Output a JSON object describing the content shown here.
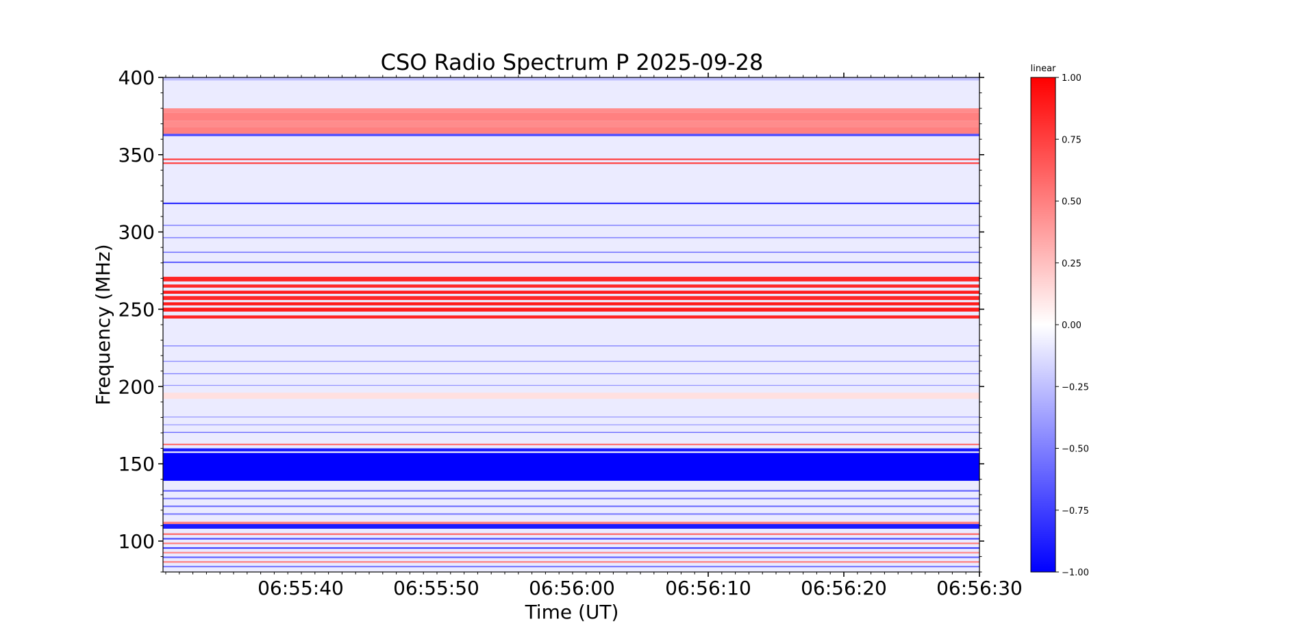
{
  "chart_data": {
    "type": "heatmap",
    "title": "CSO Radio Spectrum P 2025-09-28",
    "xlabel": "Time (UT)",
    "ylabel": "Frequency (MHz)",
    "x_range": [
      "06:55:29.9",
      "06:56:30"
    ],
    "ylim": [
      80,
      400
    ],
    "x_ticks": [
      "06:55:40",
      "06:55:50",
      "06:56:00",
      "06:56:10",
      "06:56:20",
      "06:56:30"
    ],
    "y_ticks": [
      100,
      150,
      200,
      250,
      300,
      350,
      400
    ],
    "colorbar": {
      "label": "linear",
      "range": [
        -1.0,
        1.0
      ],
      "ticks": [
        "1.00",
        "0.75",
        "0.50",
        "0.25",
        "0.00",
        "−0.25",
        "−0.50",
        "−0.75",
        "−1.00"
      ],
      "colormap": "bwr",
      "colors": {
        "low": "#0000ff",
        "mid": "#ffffff",
        "high": "#ff0000"
      }
    },
    "bands": [
      {
        "f0": 398,
        "f1": 400,
        "v": -0.25
      },
      {
        "f0": 377,
        "f1": 380,
        "v": 0.45
      },
      {
        "f0": 372,
        "f1": 377,
        "v": 0.5
      },
      {
        "f0": 368,
        "f1": 372,
        "v": 0.45
      },
      {
        "f0": 363.5,
        "f1": 368,
        "v": 0.5
      },
      {
        "f0": 362,
        "f1": 363.5,
        "v": -0.7
      },
      {
        "f0": 346.5,
        "f1": 347.5,
        "v": 0.75
      },
      {
        "f0": 344,
        "f1": 345,
        "v": 0.75
      },
      {
        "f0": 318,
        "f1": 319,
        "v": -0.8
      },
      {
        "f0": 304,
        "f1": 304.6,
        "v": -0.55
      },
      {
        "f0": 296,
        "f1": 296.6,
        "v": -0.55
      },
      {
        "f0": 286.5,
        "f1": 287.2,
        "v": -0.55
      },
      {
        "f0": 280,
        "f1": 280.8,
        "v": -0.7
      },
      {
        "f0": 268,
        "f1": 271,
        "v": 0.85
      },
      {
        "f0": 264,
        "f1": 266,
        "v": 0.85
      },
      {
        "f0": 260,
        "f1": 262,
        "v": 0.9
      },
      {
        "f0": 256,
        "f1": 258.5,
        "v": 0.85
      },
      {
        "f0": 252.5,
        "f1": 254.5,
        "v": 0.9
      },
      {
        "f0": 248.5,
        "f1": 251,
        "v": 0.9
      },
      {
        "f0": 244,
        "f1": 246,
        "v": 0.85
      },
      {
        "f0": 226,
        "f1": 226.6,
        "v": -0.5
      },
      {
        "f0": 216,
        "f1": 216.6,
        "v": -0.45
      },
      {
        "f0": 208,
        "f1": 208.6,
        "v": -0.5
      },
      {
        "f0": 200.5,
        "f1": 201,
        "v": -0.45
      },
      {
        "f0": 192,
        "f1": 196,
        "v": 0.12
      },
      {
        "f0": 180,
        "f1": 180.5,
        "v": -0.45
      },
      {
        "f0": 175,
        "f1": 175.5,
        "v": -0.45
      },
      {
        "f0": 170,
        "f1": 170.6,
        "v": -0.6
      },
      {
        "f0": 162,
        "f1": 163,
        "v": 0.55
      },
      {
        "f0": 158,
        "f1": 160,
        "v": -0.9
      },
      {
        "f0": 139,
        "f1": 157,
        "v": -1.0
      },
      {
        "f0": 132,
        "f1": 133,
        "v": -0.6
      },
      {
        "f0": 127,
        "f1": 128,
        "v": -0.5
      },
      {
        "f0": 122,
        "f1": 123,
        "v": -0.55
      },
      {
        "f0": 117,
        "f1": 118,
        "v": -0.5
      },
      {
        "f0": 111,
        "f1": 112.5,
        "v": 0.5
      },
      {
        "f0": 108,
        "f1": 111,
        "v": -0.9
      },
      {
        "f0": 104,
        "f1": 105,
        "v": 0.6
      },
      {
        "f0": 101,
        "f1": 102,
        "v": -0.7
      },
      {
        "f0": 98,
        "f1": 99,
        "v": 0.5
      },
      {
        "f0": 95,
        "f1": 96,
        "v": -0.75
      },
      {
        "f0": 92,
        "f1": 93,
        "v": 0.45
      },
      {
        "f0": 89,
        "f1": 90,
        "v": -0.6
      },
      {
        "f0": 86,
        "f1": 87,
        "v": 0.5
      },
      {
        "f0": 83,
        "f1": 84,
        "v": -0.5
      }
    ],
    "background_value": -0.08
  }
}
